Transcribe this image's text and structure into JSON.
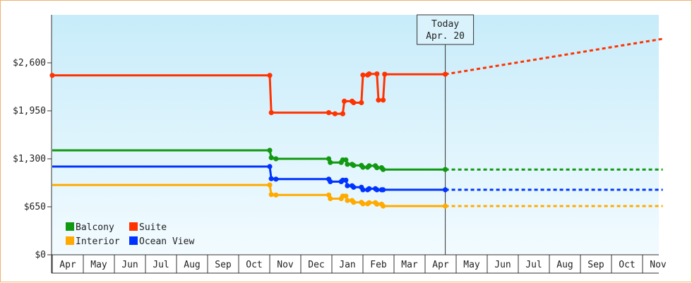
{
  "chart_data": {
    "type": "line",
    "title": "",
    "xlabel": "",
    "ylabel": "",
    "ylim": [
      0,
      3250
    ],
    "yticks": [
      {
        "value": 0,
        "label": "$0"
      },
      {
        "value": 650,
        "label": "$650"
      },
      {
        "value": 1300,
        "label": "$1,300"
      },
      {
        "value": 1950,
        "label": "$1,950"
      },
      {
        "value": 2600,
        "label": "$2,600"
      }
    ],
    "months": [
      "Apr",
      "May",
      "Jun",
      "Jul",
      "Aug",
      "Sep",
      "Oct",
      "Nov",
      "Dec",
      "Jan",
      "Feb",
      "Mar",
      "Apr",
      "May",
      "Jun",
      "Jul",
      "Aug",
      "Sep",
      "Oct",
      "Nov"
    ],
    "grid": false,
    "legend_position": "bottom-left",
    "today": {
      "label": "Today",
      "date": "Apr. 20",
      "month_index": 12.65
    },
    "series": [
      {
        "name": "Suite",
        "color": "#ff3300",
        "points": [
          [
            0,
            2430
          ],
          [
            7.0,
            2430
          ],
          [
            7.05,
            1925
          ],
          [
            8.9,
            1925
          ],
          [
            9.1,
            1910
          ],
          [
            9.35,
            1910
          ],
          [
            9.4,
            2080
          ],
          [
            9.65,
            2080
          ],
          [
            9.7,
            2060
          ],
          [
            9.95,
            2060
          ],
          [
            10.0,
            2435
          ],
          [
            10.15,
            2435
          ],
          [
            10.2,
            2450
          ],
          [
            10.45,
            2450
          ],
          [
            10.5,
            2095
          ],
          [
            10.65,
            2095
          ],
          [
            10.7,
            2445
          ],
          [
            12.65,
            2445
          ]
        ],
        "forecast": [
          [
            12.65,
            2445
          ],
          [
            19.65,
            2925
          ]
        ]
      },
      {
        "name": "Balcony",
        "color": "#119911",
        "points": [
          [
            0,
            1415
          ],
          [
            7.0,
            1415
          ],
          [
            7.05,
            1315
          ],
          [
            7.2,
            1300
          ],
          [
            8.9,
            1300
          ],
          [
            8.95,
            1250
          ],
          [
            9.3,
            1250
          ],
          [
            9.35,
            1285
          ],
          [
            9.45,
            1285
          ],
          [
            9.5,
            1225
          ],
          [
            9.65,
            1225
          ],
          [
            9.7,
            1210
          ],
          [
            9.95,
            1210
          ],
          [
            10.0,
            1185
          ],
          [
            10.15,
            1185
          ],
          [
            10.2,
            1205
          ],
          [
            10.4,
            1205
          ],
          [
            10.45,
            1180
          ],
          [
            10.6,
            1180
          ],
          [
            10.65,
            1155
          ],
          [
            12.65,
            1155
          ]
        ],
        "forecast": [
          [
            12.65,
            1155
          ],
          [
            19.65,
            1155
          ]
        ]
      },
      {
        "name": "Interior",
        "color": "#ffaa00",
        "points": [
          [
            0,
            945
          ],
          [
            7.0,
            945
          ],
          [
            7.05,
            815
          ],
          [
            7.2,
            810
          ],
          [
            8.9,
            810
          ],
          [
            8.95,
            760
          ],
          [
            9.3,
            760
          ],
          [
            9.35,
            795
          ],
          [
            9.45,
            795
          ],
          [
            9.5,
            735
          ],
          [
            9.65,
            735
          ],
          [
            9.7,
            710
          ],
          [
            9.95,
            710
          ],
          [
            10.0,
            690
          ],
          [
            10.15,
            690
          ],
          [
            10.2,
            705
          ],
          [
            10.4,
            705
          ],
          [
            10.45,
            685
          ],
          [
            10.6,
            685
          ],
          [
            10.65,
            660
          ],
          [
            12.65,
            660
          ]
        ],
        "forecast": [
          [
            12.65,
            660
          ],
          [
            19.65,
            660
          ]
        ]
      },
      {
        "name": "Ocean View",
        "color": "#0033ff",
        "points": [
          [
            0,
            1195
          ],
          [
            7.0,
            1195
          ],
          [
            7.05,
            1030
          ],
          [
            7.2,
            1025
          ],
          [
            8.9,
            1025
          ],
          [
            8.95,
            990
          ],
          [
            9.3,
            990
          ],
          [
            9.35,
            1010
          ],
          [
            9.45,
            1010
          ],
          [
            9.5,
            935
          ],
          [
            9.65,
            935
          ],
          [
            9.7,
            915
          ],
          [
            9.95,
            915
          ],
          [
            10.0,
            880
          ],
          [
            10.15,
            880
          ],
          [
            10.2,
            895
          ],
          [
            10.4,
            895
          ],
          [
            10.45,
            880
          ],
          [
            10.6,
            880
          ],
          [
            10.65,
            880
          ],
          [
            12.65,
            880
          ]
        ],
        "forecast": [
          [
            12.65,
            880
          ],
          [
            19.65,
            880
          ]
        ]
      }
    ],
    "legend": [
      {
        "name": "Balcony",
        "color": "#119911"
      },
      {
        "name": "Suite",
        "color": "#ff3300"
      },
      {
        "name": "Interior",
        "color": "#ffaa00"
      },
      {
        "name": "Ocean View",
        "color": "#0033ff"
      }
    ]
  }
}
